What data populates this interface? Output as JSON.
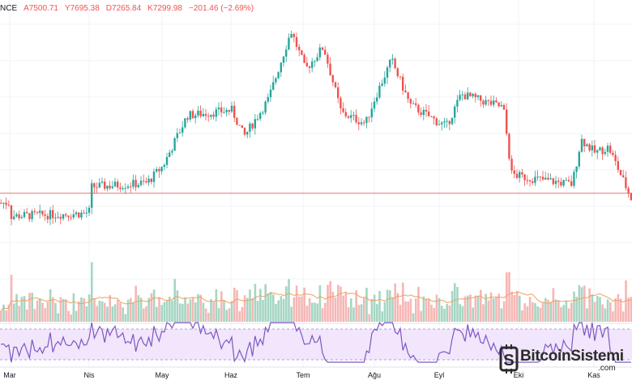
{
  "header": {
    "symbol_fragment": "NCE",
    "open": "A7500.71",
    "high": "Y7695.38",
    "low": "D7265.84",
    "close": "K7299.98",
    "change": "−201.46 (−2.69%)"
  },
  "colors": {
    "up": "#26a69a",
    "down": "#ef5350",
    "volume_up": "#a5d6c3",
    "volume_down": "#f5b7b5",
    "ma_line": "#f0a060",
    "rsi_line": "#7e57c2",
    "rsi_fill": "#f1e6fb",
    "h_line": "#e57373"
  },
  "xaxis": {
    "labels": [
      "Mar",
      "Nis",
      "May",
      "Haz",
      "Tem",
      "Ağu",
      "Eyl",
      "Eki",
      "Kas"
    ]
  },
  "watermark": {
    "brand": "BitcoinSistemi",
    "suffix": ".com",
    "icon": "bitcoin-s-icon"
  },
  "chart_data": {
    "type": "candlestick",
    "x_axis": [
      "Mar",
      "Nis",
      "May",
      "Haz",
      "Tem",
      "Ağu",
      "Eyl",
      "Eki",
      "Kas"
    ],
    "close_path_approx": [
      {
        "period": "Mar",
        "close": 6800
      },
      {
        "period": "Nis",
        "close": 7000
      },
      {
        "period": "May",
        "close": 8700
      },
      {
        "period": "Haz",
        "close": 10800
      },
      {
        "period": "Tem",
        "close": 12500
      },
      {
        "period": "Ağu",
        "close": 11300
      },
      {
        "period": "Eyl",
        "close": 10300
      },
      {
        "period": "Eki",
        "close": 8300
      },
      {
        "period": "Kas",
        "close": 9200
      }
    ],
    "last": {
      "open": 7500.71,
      "high": 7695.38,
      "low": 7265.84,
      "close": 7299.98,
      "change": -201.46,
      "change_pct": -2.69
    },
    "indicators": [
      "volume",
      "volume_ma",
      "rsi"
    ]
  }
}
